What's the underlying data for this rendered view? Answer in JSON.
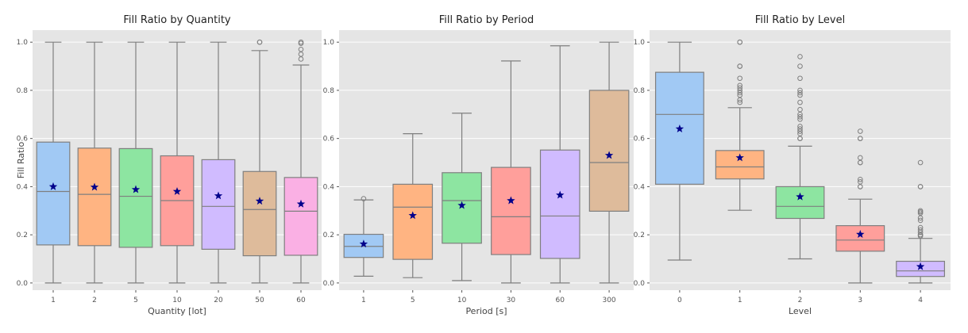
{
  "chart_data": [
    {
      "type": "box",
      "title": "Fill Ratio by Quantity",
      "xlabel": "Quantity [lot]",
      "ylabel": "Fill Ratio",
      "ylim": [
        -0.03,
        1.05
      ],
      "yticks": [
        "0.0",
        "0.2",
        "0.4",
        "0.6",
        "0.8",
        "1.0"
      ],
      "grid": true,
      "categories": [
        "1",
        "2",
        "5",
        "10",
        "20",
        "50",
        "60"
      ],
      "colors": [
        "#a1c9f4",
        "#ffb482",
        "#8de5a1",
        "#ff9f9b",
        "#d0bbff",
        "#debb9b",
        "#fab0e4"
      ],
      "boxes": [
        {
          "whislo": 0.0,
          "q1": 0.158,
          "median": 0.38,
          "q3": 0.585,
          "whishi": 1.0,
          "mean": 0.4,
          "fliers": []
        },
        {
          "whislo": 0.0,
          "q1": 0.155,
          "median": 0.368,
          "q3": 0.56,
          "whishi": 1.0,
          "mean": 0.398,
          "fliers": []
        },
        {
          "whislo": 0.0,
          "q1": 0.148,
          "median": 0.36,
          "q3": 0.558,
          "whishi": 1.0,
          "mean": 0.388,
          "fliers": []
        },
        {
          "whislo": 0.0,
          "q1": 0.155,
          "median": 0.342,
          "q3": 0.528,
          "whishi": 1.0,
          "mean": 0.38,
          "fliers": []
        },
        {
          "whislo": 0.0,
          "q1": 0.14,
          "median": 0.318,
          "q3": 0.512,
          "whishi": 1.0,
          "mean": 0.362,
          "fliers": []
        },
        {
          "whislo": 0.0,
          "q1": 0.113,
          "median": 0.305,
          "q3": 0.463,
          "whishi": 0.965,
          "mean": 0.34,
          "fliers": [
            1.0,
            1.0
          ]
        },
        {
          "whislo": 0.0,
          "q1": 0.115,
          "median": 0.298,
          "q3": 0.438,
          "whishi": 0.905,
          "mean": 0.328,
          "fliers": [
            1.0,
            0.995,
            0.97,
            0.95,
            0.93
          ]
        }
      ]
    },
    {
      "type": "box",
      "title": "Fill Ratio by Period",
      "xlabel": "Period [s]",
      "ylabel": "",
      "ylim": [
        -0.03,
        1.05
      ],
      "yticks": [
        "0.0",
        "0.2",
        "0.4",
        "0.6",
        "0.8",
        "1.0"
      ],
      "grid": true,
      "categories": [
        "1",
        "5",
        "10",
        "30",
        "60",
        "300"
      ],
      "colors": [
        "#a1c9f4",
        "#ffb482",
        "#8de5a1",
        "#ff9f9b",
        "#d0bbff",
        "#debb9b"
      ],
      "boxes": [
        {
          "whislo": 0.028,
          "q1": 0.106,
          "median": 0.152,
          "q3": 0.202,
          "whishi": 0.345,
          "mean": 0.162,
          "fliers": [
            0.35
          ]
        },
        {
          "whislo": 0.022,
          "q1": 0.098,
          "median": 0.315,
          "q3": 0.41,
          "whishi": 0.62,
          "mean": 0.28,
          "fliers": []
        },
        {
          "whislo": 0.01,
          "q1": 0.165,
          "median": 0.342,
          "q3": 0.458,
          "whishi": 0.705,
          "mean": 0.322,
          "fliers": []
        },
        {
          "whislo": 0.0,
          "q1": 0.118,
          "median": 0.275,
          "q3": 0.48,
          "whishi": 0.922,
          "mean": 0.342,
          "fliers": []
        },
        {
          "whislo": 0.0,
          "q1": 0.102,
          "median": 0.278,
          "q3": 0.552,
          "whishi": 0.985,
          "mean": 0.365,
          "fliers": []
        },
        {
          "whislo": 0.0,
          "q1": 0.298,
          "median": 0.5,
          "q3": 0.8,
          "whishi": 1.0,
          "mean": 0.53,
          "fliers": []
        }
      ]
    },
    {
      "type": "box",
      "title": "Fill Ratio by Level",
      "xlabel": "Level",
      "ylabel": "",
      "ylim": [
        -0.03,
        1.05
      ],
      "yticks": [
        "0.0",
        "0.2",
        "0.4",
        "0.6",
        "0.8",
        "1.0"
      ],
      "grid": true,
      "categories": [
        "0",
        "1",
        "2",
        "3",
        "4"
      ],
      "colors": [
        "#a1c9f4",
        "#ffb482",
        "#8de5a1",
        "#ff9f9b",
        "#d0bbff"
      ],
      "boxes": [
        {
          "whislo": 0.095,
          "q1": 0.41,
          "median": 0.7,
          "q3": 0.875,
          "whishi": 1.0,
          "mean": 0.64,
          "fliers": []
        },
        {
          "whislo": 0.302,
          "q1": 0.432,
          "median": 0.482,
          "q3": 0.55,
          "whishi": 0.728,
          "mean": 0.52,
          "fliers": [
            1.0,
            1.0,
            0.9,
            0.9,
            0.85,
            0.82,
            0.81,
            0.8,
            0.79,
            0.78,
            0.76,
            0.75
          ]
        },
        {
          "whislo": 0.1,
          "q1": 0.268,
          "median": 0.318,
          "q3": 0.4,
          "whishi": 0.568,
          "mean": 0.358,
          "fliers": [
            0.94,
            0.9,
            0.85,
            0.8,
            0.79,
            0.78,
            0.75,
            0.72,
            0.7,
            0.69,
            0.68,
            0.65,
            0.64,
            0.63,
            0.62,
            0.6,
            0.6
          ]
        },
        {
          "whislo": 0.0,
          "q1": 0.132,
          "median": 0.178,
          "q3": 0.238,
          "whishi": 0.348,
          "mean": 0.202,
          "fliers": [
            0.63,
            0.6,
            0.6,
            0.52,
            0.5,
            0.5,
            0.43,
            0.42,
            0.4,
            0.4
          ]
        },
        {
          "whislo": 0.0,
          "q1": 0.027,
          "median": 0.05,
          "q3": 0.09,
          "whishi": 0.185,
          "mean": 0.068,
          "fliers": [
            0.5,
            0.4,
            0.4,
            0.3,
            0.295,
            0.29,
            0.27,
            0.26,
            0.23,
            0.22,
            0.21,
            0.2,
            0.2,
            0.195
          ]
        }
      ]
    }
  ]
}
